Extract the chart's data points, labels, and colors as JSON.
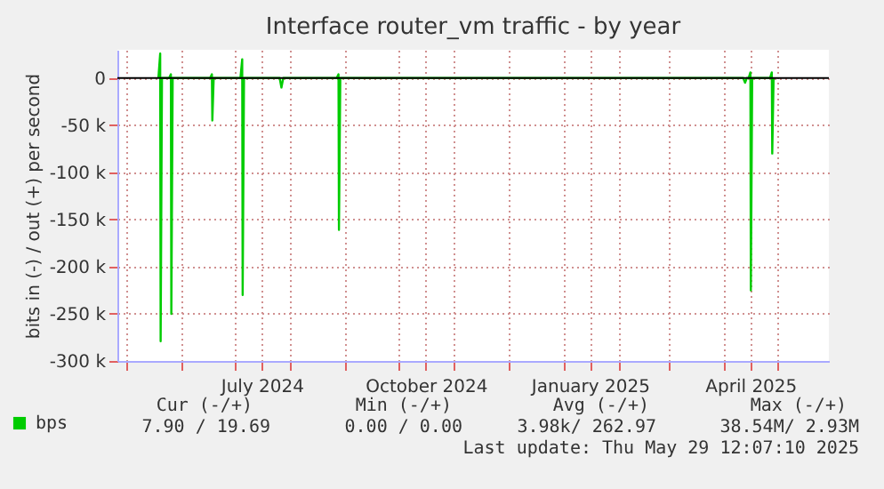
{
  "chart_data": {
    "type": "line",
    "title": "Interface router_vm traffic - by year",
    "ylabel": "bits in (-) / out (+) per second",
    "x": [
      "2024-05-19",
      "2024-05-20T00:00",
      "2024-05-20T06:00",
      "2024-05-21",
      "2024-05-25",
      "2024-05-26T00:00",
      "2024-05-26T06:00",
      "2024-05-27",
      "2024-06-17",
      "2024-06-18T00:00",
      "2024-06-18T06:00",
      "2024-06-19",
      "2024-07-04",
      "2024-07-05T00:00",
      "2024-07-05T06:00",
      "2024-07-06",
      "2024-07-26",
      "2024-07-27",
      "2024-07-28",
      "2024-08-27",
      "2024-08-28T00:00",
      "2024-08-28T06:00",
      "2024-08-29",
      "2025-04-12",
      "2025-04-13",
      "2025-04-14",
      "2025-04-15",
      "2025-04-16T00:00",
      "2025-04-16T06:00",
      "2025-04-17",
      "2025-04-27",
      "2025-04-28T00:00",
      "2025-04-28T06:00",
      "2025-04-29"
    ],
    "series": [
      {
        "name": "bps",
        "color": "#00cc00",
        "values": [
          0,
          26000,
          -279000,
          0,
          0,
          4000,
          -250000,
          0,
          0,
          4000,
          -45000,
          0,
          0,
          20000,
          -230000,
          0,
          0,
          -10000,
          0,
          0,
          4000,
          -161000,
          0,
          0,
          -5000,
          0,
          0,
          6000,
          -225000,
          0,
          0,
          6000,
          -80000,
          0
        ]
      }
    ],
    "xlim": [
      "2024-04-26",
      "2025-05-30"
    ],
    "xticks": [
      {
        "value": "2024-05-01",
        "label": null
      },
      {
        "value": "2024-06-01",
        "label": null
      },
      {
        "value": "2024-07-01",
        "label": null
      },
      {
        "value": "2024-07-16",
        "label": "July 2024"
      },
      {
        "value": "2024-08-01",
        "label": null
      },
      {
        "value": "2024-09-01",
        "label": null
      },
      {
        "value": "2024-10-01",
        "label": null
      },
      {
        "value": "2024-10-16",
        "label": "October 2024"
      },
      {
        "value": "2024-11-01",
        "label": null
      },
      {
        "value": "2024-12-01",
        "label": null
      },
      {
        "value": "2025-01-01",
        "label": null
      },
      {
        "value": "2025-01-16",
        "label": "January 2025"
      },
      {
        "value": "2025-02-01",
        "label": null
      },
      {
        "value": "2025-03-01",
        "label": null
      },
      {
        "value": "2025-04-01",
        "label": null
      },
      {
        "value": "2025-04-16",
        "label": "April 2025"
      },
      {
        "value": "2025-05-01",
        "label": null
      }
    ],
    "ylim": [
      -300000,
      30000
    ],
    "yticks": [
      {
        "value": -300000,
        "label": "-300 k"
      },
      {
        "value": -250000,
        "label": "-250 k"
      },
      {
        "value": -200000,
        "label": "-200 k"
      },
      {
        "value": -150000,
        "label": "-150 k"
      },
      {
        "value": -100000,
        "label": "-100 k"
      },
      {
        "value": -50000,
        "label": "-50 k"
      },
      0
    ],
    "ref_lines": [
      {
        "axis": "y",
        "value": 0,
        "color": "#000000"
      }
    ],
    "grid": true,
    "legend": "bottom left",
    "marker": "none",
    "line_style": "solid",
    "annotations": [
      "Cur (-/+)",
      "Min (-/+)",
      "Avg (-/+)",
      "Max (-/+)",
      "7.90 / 19.69",
      "0.00 /   0.00",
      "3.98k/ 262.97",
      "38.54M/   2.93M",
      "Last update: Thu May 29 12:07:10 2025"
    ]
  }
}
